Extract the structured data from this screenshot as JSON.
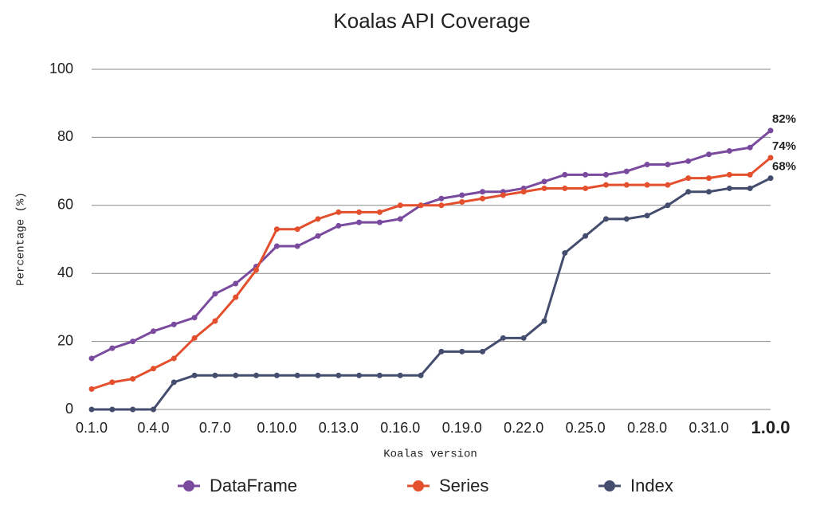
{
  "chart_data": {
    "type": "line",
    "title": "Koalas API Coverage",
    "x_label": "Koalas version",
    "y_label": "Percentage (%)",
    "categories": [
      "0.1.0",
      null,
      null,
      "0.4.0",
      null,
      null,
      "0.7.0",
      null,
      null,
      "0.10.0",
      null,
      null,
      "0.13.0",
      null,
      null,
      "0.16.0",
      null,
      null,
      "0.19.0",
      null,
      null,
      "0.22.0",
      null,
      null,
      "0.25.0",
      null,
      null,
      "0.28.0",
      null,
      null,
      "0.31.0",
      null,
      null,
      "1.0.0"
    ],
    "series": [
      {
        "name": "DataFrame",
        "color": "#7a4a9e",
        "values": [
          15,
          18,
          20,
          23,
          25,
          27,
          34,
          37,
          42,
          48,
          48,
          51,
          54,
          55,
          55,
          56,
          60,
          62,
          63,
          64,
          64,
          65,
          67,
          69,
          69,
          69,
          70,
          72,
          72,
          73,
          75,
          76,
          77,
          82
        ],
        "value_labels": [
          null,
          null,
          null,
          null,
          null,
          null,
          null,
          null,
          null,
          null,
          null,
          null,
          null,
          null,
          null,
          null,
          null,
          null,
          null,
          null,
          null,
          null,
          null,
          null,
          null,
          null,
          null,
          null,
          null,
          null,
          null,
          null,
          null,
          "82%"
        ]
      },
      {
        "name": "Series",
        "color": "#e4502d",
        "values": [
          6,
          8,
          9,
          12,
          15,
          21,
          26,
          33,
          41,
          53,
          53,
          56,
          58,
          58,
          58,
          60,
          60,
          60,
          61,
          62,
          63,
          64,
          65,
          65,
          65,
          66,
          66,
          66,
          66,
          68,
          68,
          69,
          69,
          74
        ],
        "value_labels": [
          null,
          null,
          null,
          null,
          null,
          null,
          null,
          null,
          null,
          null,
          null,
          null,
          null,
          null,
          null,
          null,
          null,
          null,
          null,
          null,
          null,
          null,
          null,
          null,
          null,
          null,
          null,
          null,
          null,
          null,
          null,
          null,
          null,
          "74%"
        ]
      },
      {
        "name": "Index",
        "color": "#454d6e",
        "values": [
          0,
          0,
          0,
          0,
          8,
          10,
          10,
          10,
          10,
          10,
          10,
          10,
          10,
          10,
          10,
          10,
          10,
          17,
          17,
          17,
          21,
          21,
          26,
          46,
          51,
          56,
          56,
          57,
          60,
          64,
          64,
          65,
          65,
          68
        ],
        "value_labels": [
          null,
          null,
          null,
          null,
          null,
          null,
          null,
          null,
          null,
          null,
          null,
          null,
          null,
          null,
          null,
          null,
          null,
          null,
          null,
          null,
          null,
          null,
          null,
          null,
          null,
          null,
          null,
          null,
          null,
          null,
          null,
          null,
          null,
          "68%"
        ]
      }
    ],
    "ylim": [
      0,
      100
    ],
    "yticks": [
      0,
      20,
      40,
      60,
      80,
      100
    ],
    "grid": true,
    "legend": "bottom"
  }
}
